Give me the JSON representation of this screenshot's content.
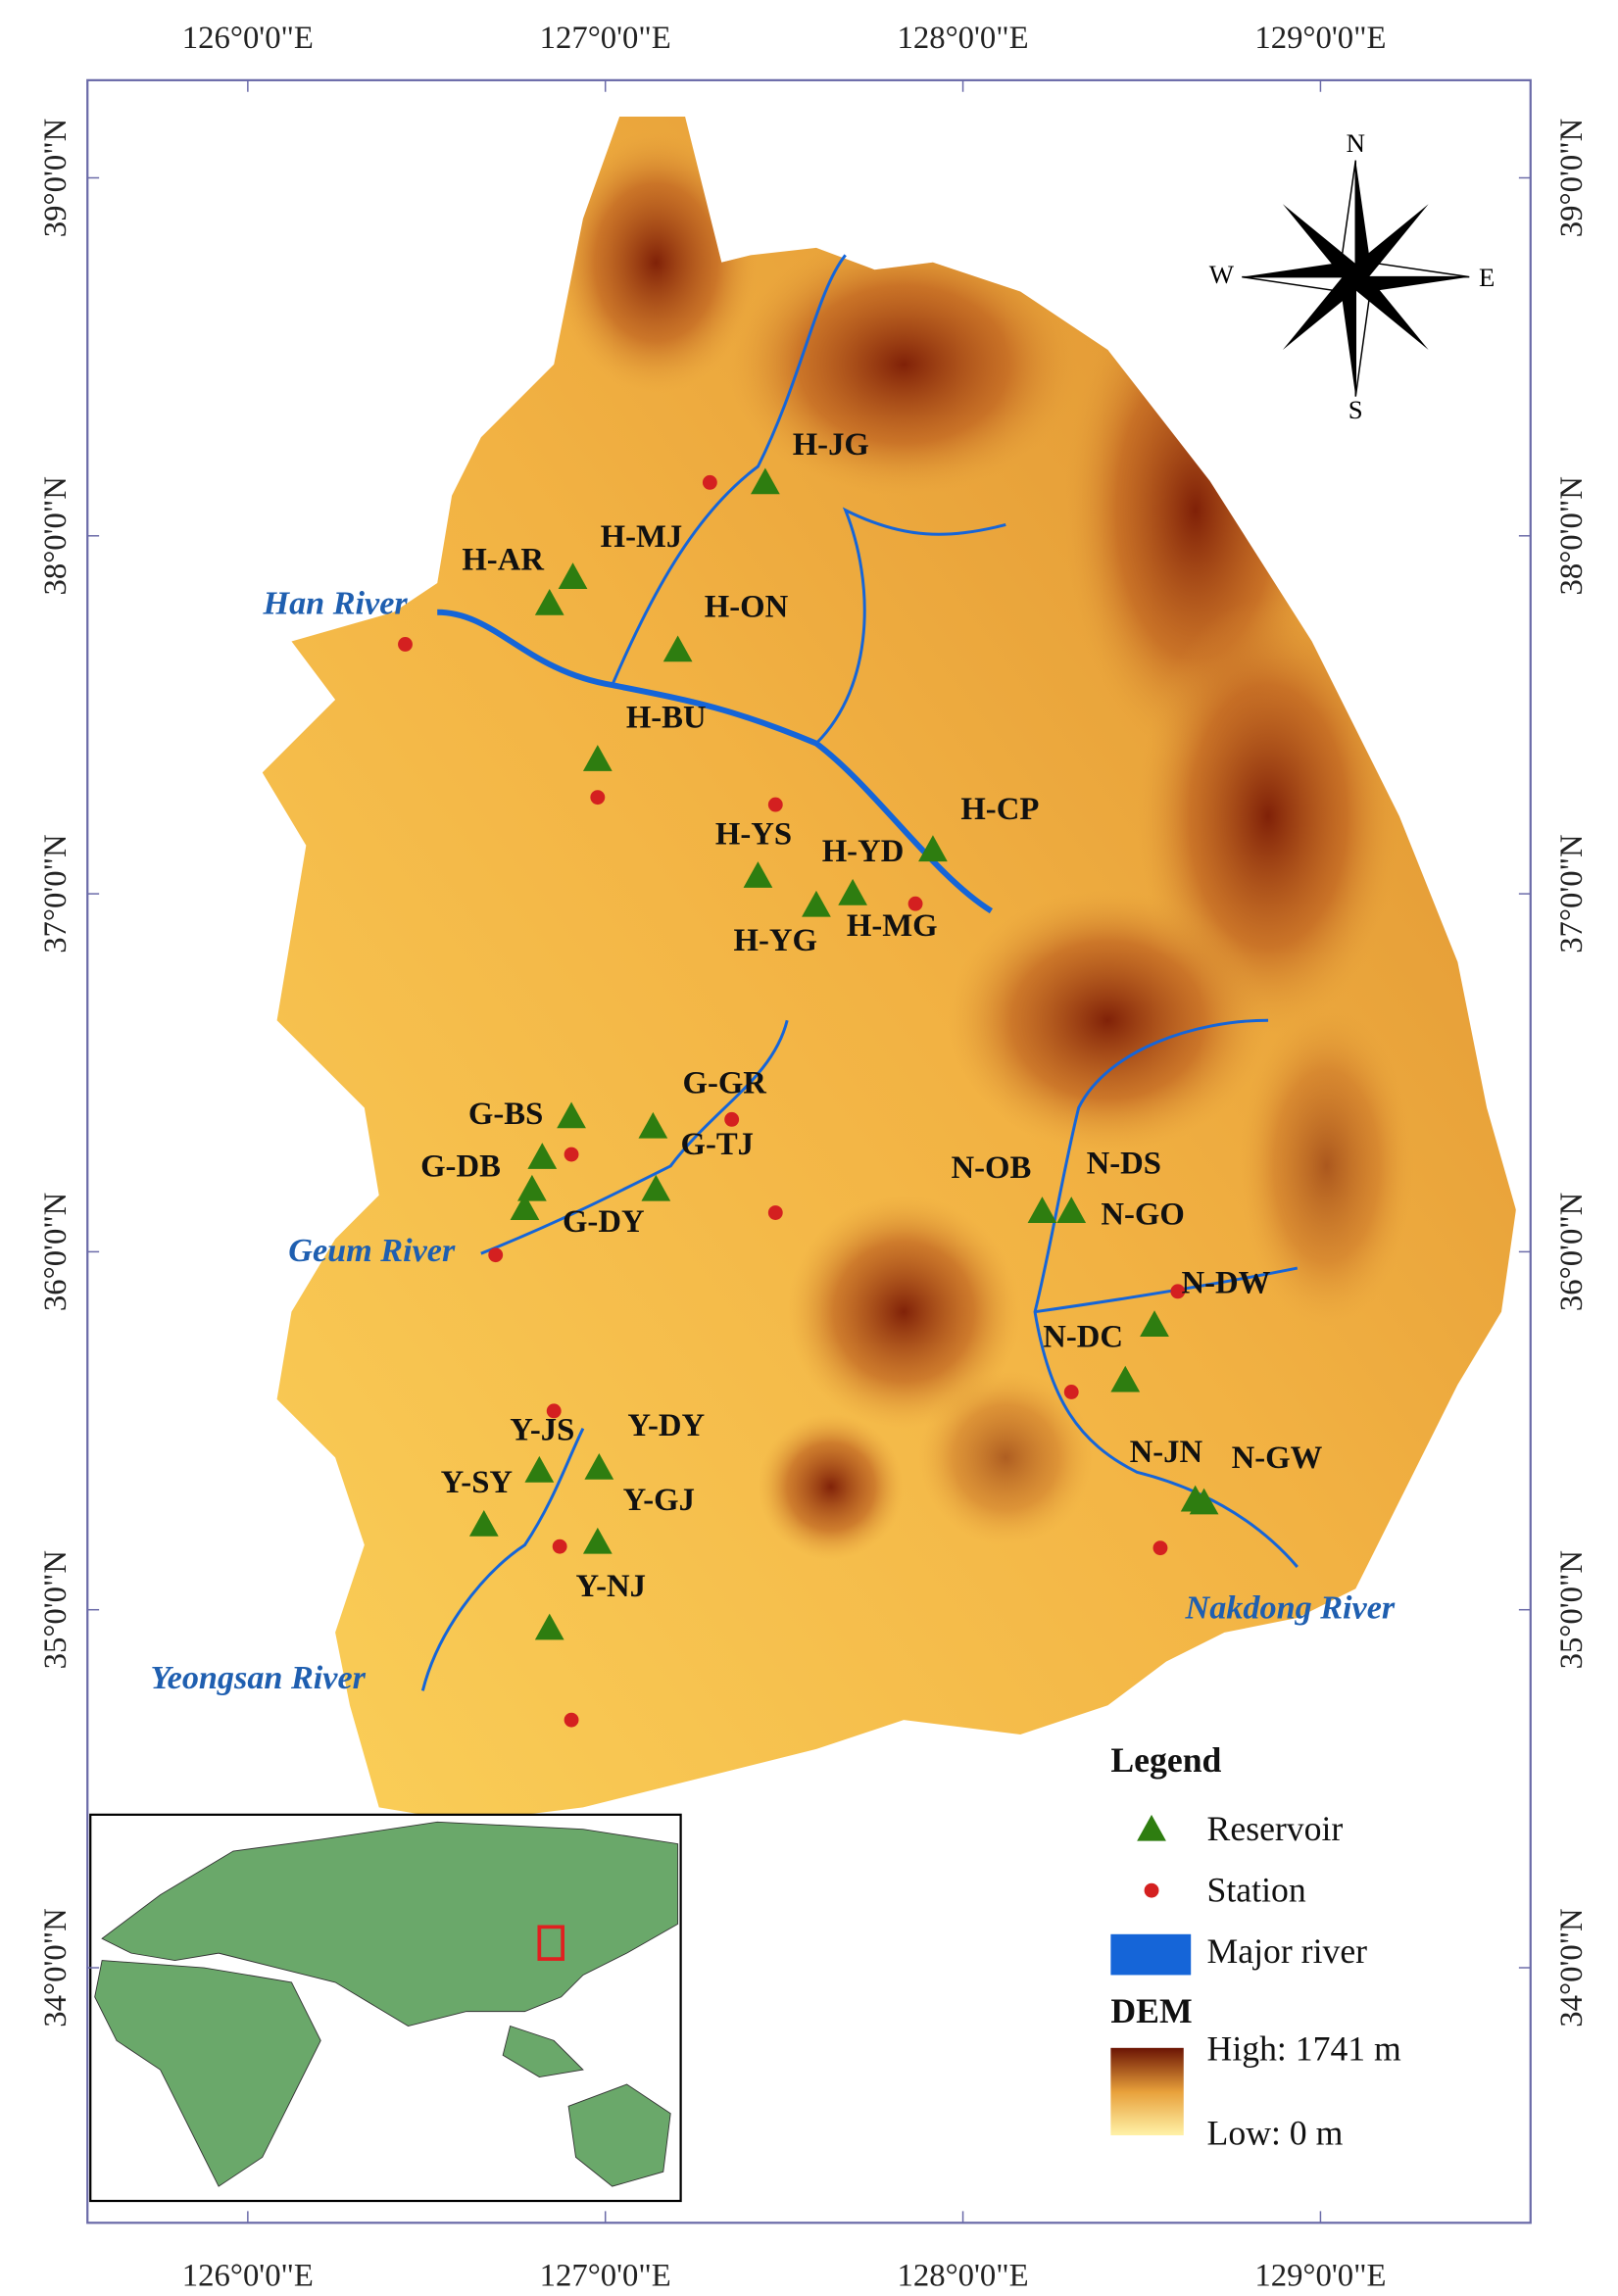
{
  "map": {
    "lon_ticks": [
      {
        "value": 126,
        "label": "126°0'0\"E"
      },
      {
        "value": 127,
        "label": "127°0'0\"E"
      },
      {
        "value": 128,
        "label": "128°0'0\"E"
      },
      {
        "value": 129,
        "label": "129°0'0\"E"
      }
    ],
    "lat_ticks": [
      {
        "value": 39,
        "label": "39°0'0\"N"
      },
      {
        "value": 38,
        "label": "38°0'0\"N"
      },
      {
        "value": 37,
        "label": "37°0'0\"N"
      },
      {
        "value": 36,
        "label": "36°0'0\"N"
      },
      {
        "value": 35,
        "label": "35°0'0\"N"
      },
      {
        "value": 34,
        "label": "34°0'0\"N"
      }
    ],
    "compass": {
      "north": "N",
      "south": "S",
      "east": "E",
      "west": "W"
    },
    "rivers": [
      "Han River",
      "Geum River",
      "Yeongsan River",
      "Nakdong River"
    ],
    "reservoirs": [
      "H-JG",
      "H-MJ",
      "H-AR",
      "H-ON",
      "H-BU",
      "H-YS",
      "H-YD",
      "H-CP",
      "H-MG",
      "H-YG",
      "G-GR",
      "G-BS",
      "G-TJ",
      "G-DB",
      "G-DY",
      "N-OB",
      "N-DS",
      "N-GO",
      "N-DW",
      "N-DC",
      "N-JN",
      "N-GW",
      "Y-JS",
      "Y-DY",
      "Y-SY",
      "Y-GJ",
      "Y-NJ"
    ],
    "legend": {
      "title": "Legend",
      "items": [
        "Reservoir",
        "Station",
        "Major river"
      ],
      "dem_title": "DEM",
      "high": "High: 1741 m",
      "low": "Low: 0 m"
    }
  }
}
